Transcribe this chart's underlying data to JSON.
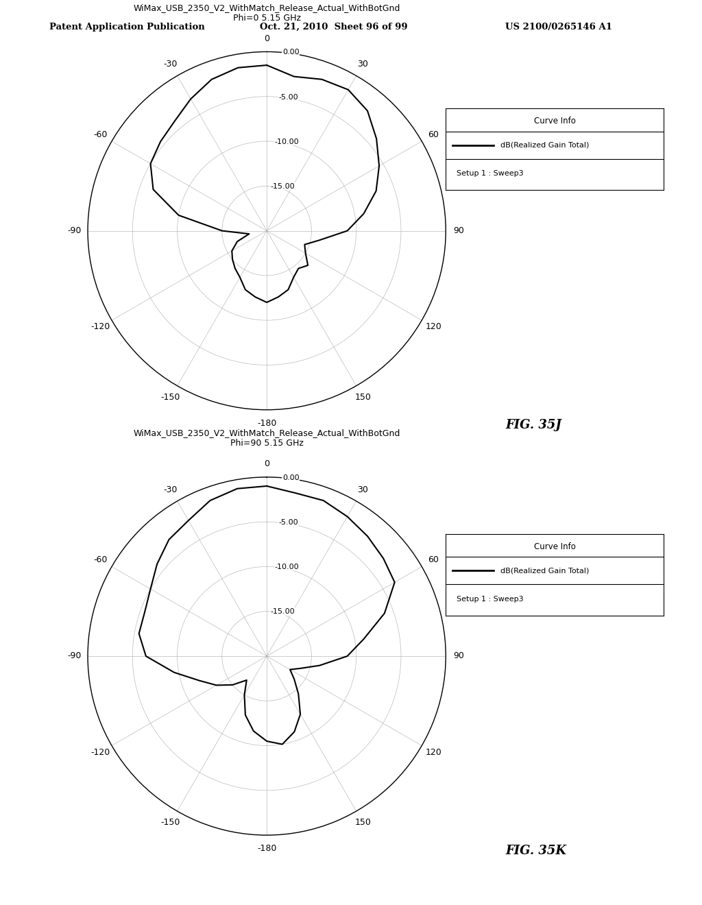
{
  "title_line1": "WiMax_USB_2350_V2_WithMatch_Release_Actual_WithBotGnd",
  "plot1_subtitle": "Phi=0 5.15 GHz",
  "plot2_subtitle": "Phi=90 5.15 GHz",
  "fig1_label": "FIG. 35J",
  "fig2_label": "FIG. 35K",
  "header_left": "Patent Application Publication",
  "header_mid": "Oct. 21, 2010  Sheet 96 of 99",
  "header_right": "US 2100/0265146 A1",
  "curve_info_title": "Curve Info",
  "curve_legend_label": "dB(Realized Gain Total)",
  "curve_legend_sub": "Setup 1 : Sweep3",
  "r_labels": [
    "0.00",
    "-5.00",
    "-10.00",
    "-15.00"
  ],
  "r_ticks": [
    0,
    -5,
    -10,
    -15
  ],
  "plot1_angles_deg": [
    0,
    10,
    20,
    30,
    40,
    50,
    60,
    70,
    80,
    90,
    100,
    110,
    120,
    130,
    140,
    150,
    160,
    170,
    180,
    -170,
    -160,
    -150,
    -140,
    -130,
    -120,
    -110,
    -100,
    -90,
    -80,
    -70,
    -60,
    -50,
    -40,
    -30,
    -20,
    -10
  ],
  "plot1_gains": [
    -1.5,
    -2.5,
    -2.0,
    -1.8,
    -2.5,
    -4.0,
    -5.5,
    -7.0,
    -9.0,
    -11.0,
    -14.0,
    -15.5,
    -15.0,
    -14.0,
    -14.5,
    -14.0,
    -13.0,
    -12.5,
    -12.0,
    -12.5,
    -13.0,
    -14.0,
    -14.5,
    -15.0,
    -15.5,
    -16.5,
    -18.0,
    -15.0,
    -10.0,
    -6.5,
    -5.0,
    -4.5,
    -4.0,
    -3.0,
    -2.0,
    -1.5
  ],
  "plot2_angles_deg": [
    0,
    10,
    20,
    30,
    40,
    50,
    60,
    70,
    80,
    90,
    100,
    110,
    120,
    130,
    140,
    150,
    160,
    170,
    180,
    -170,
    -160,
    -150,
    -140,
    -130,
    -120,
    -110,
    -100,
    -90,
    -80,
    -70,
    -60,
    -50,
    -40,
    -30,
    -20,
    -10
  ],
  "plot2_gains": [
    -1.0,
    -1.5,
    -1.5,
    -2.0,
    -2.5,
    -3.0,
    -3.5,
    -6.0,
    -9.0,
    -11.0,
    -14.0,
    -16.0,
    -17.0,
    -16.0,
    -14.5,
    -12.5,
    -11.0,
    -10.0,
    -10.5,
    -11.5,
    -13.0,
    -15.0,
    -16.5,
    -15.0,
    -13.5,
    -12.0,
    -9.5,
    -6.5,
    -5.5,
    -5.5,
    -5.0,
    -4.0,
    -3.0,
    -2.5,
    -1.5,
    -1.0
  ],
  "r_min": -20,
  "r_max": 0,
  "bg_color": "#ffffff",
  "line_color": "#000000",
  "grid_color": "#aaaaaa"
}
